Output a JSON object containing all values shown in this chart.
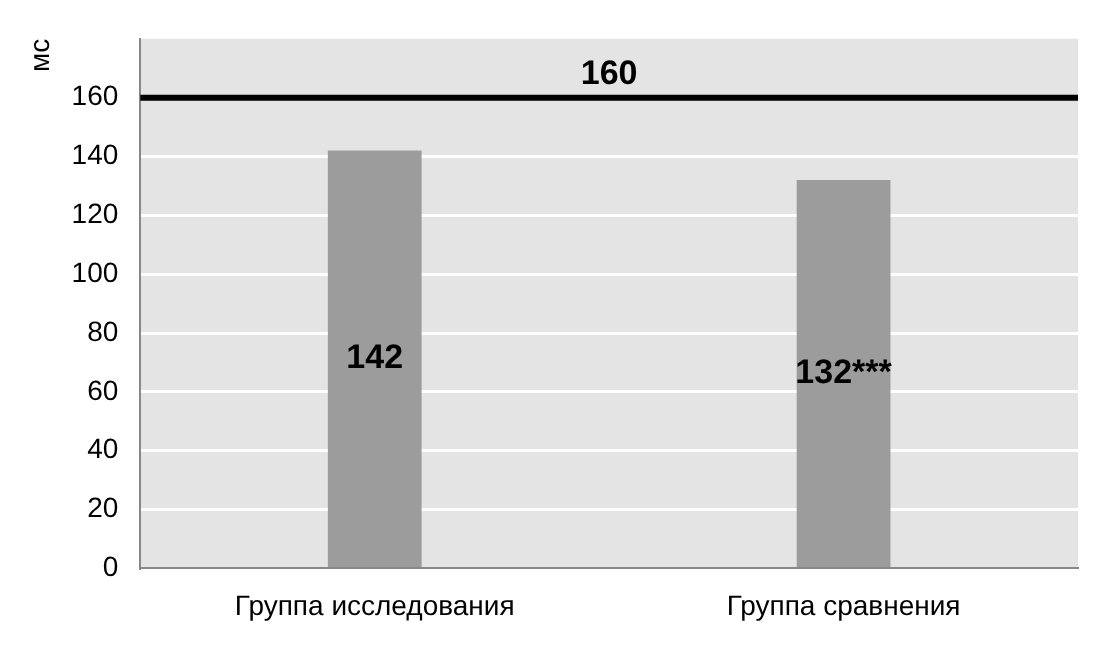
{
  "chart_data": {
    "type": "bar",
    "ylabel": "мс",
    "categories": [
      "Группа исследования",
      "Группа сравнения"
    ],
    "values": [
      142,
      132
    ],
    "value_labels": [
      "142",
      "132***"
    ],
    "color": "#9c9c9c",
    "ylim": [
      0,
      180
    ],
    "yticks": [
      0,
      20,
      40,
      60,
      80,
      100,
      120,
      140,
      160
    ],
    "grid": "y",
    "ref_lines": [
      {
        "axis": "y",
        "value": 160,
        "label": "160",
        "color": "#000000"
      }
    ]
  }
}
